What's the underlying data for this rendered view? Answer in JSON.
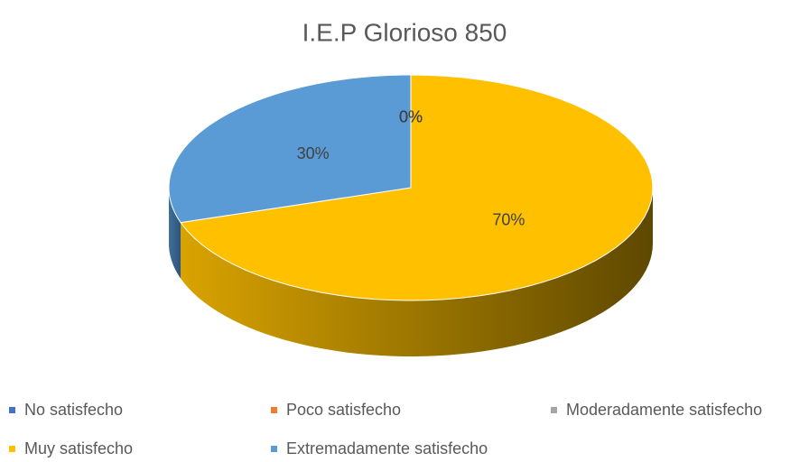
{
  "chart_data": {
    "type": "pie",
    "title": "I.E.P Glorioso 850",
    "categories": [
      "No satisfecho",
      "Poco satisfecho",
      "Moderadamente satisfecho",
      "Muy satisfecho",
      "Extremadamente satisfecho"
    ],
    "values": [
      0,
      0,
      0,
      70,
      30
    ],
    "value_labels": [
      "0%",
      "0%",
      "0%",
      "70%",
      "30%"
    ],
    "colors": [
      "#4472c4",
      "#ed7d31",
      "#a5a5a5",
      "#ffc000",
      "#5b9bd5"
    ],
    "legend": "bottom"
  }
}
